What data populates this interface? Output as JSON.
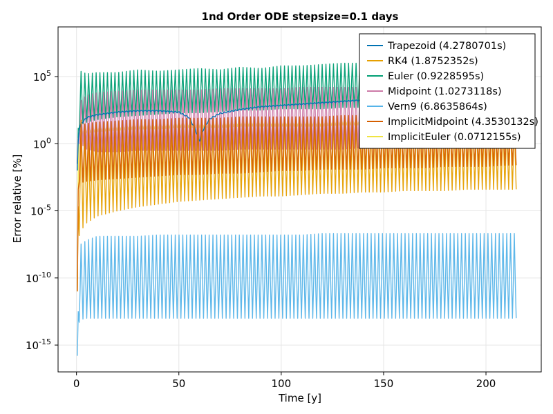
{
  "chart_data": {
    "type": "line",
    "title": "1nd Order ODE stepsize=0.1 days",
    "xlabel": "Time [y]",
    "ylabel": "Error relative [%]",
    "x_scale": "linear",
    "y_scale": "log10",
    "xlim": [
      -9,
      227
    ],
    "ylim_exponent": [
      -17,
      8.7
    ],
    "x_ticks": [
      {
        "value": 0,
        "label": "0"
      },
      {
        "value": 50,
        "label": "50"
      },
      {
        "value": 100,
        "label": "100"
      },
      {
        "value": 150,
        "label": "150"
      },
      {
        "value": 200,
        "label": "200"
      }
    ],
    "y_ticks": [
      {
        "exponent": 5,
        "base": "10",
        "exp_label": "5"
      },
      {
        "exponent": 0,
        "base": "10",
        "exp_label": "0"
      },
      {
        "exponent": -5,
        "base": "10",
        "exp_label": "-5"
      },
      {
        "exponent": -10,
        "base": "10",
        "exp_label": "-10"
      },
      {
        "exponent": -15,
        "base": "10",
        "exp_label": "-15"
      }
    ],
    "grid": true,
    "legend_position": "top-right",
    "oscillation_period_y": 1.84,
    "series": [
      {
        "name": "Euler (0.9228595s)",
        "color": "#009e73",
        "draw_order": 1,
        "x": [
          0.4,
          1,
          2,
          5,
          10,
          20,
          30,
          40,
          50,
          60,
          70,
          80,
          90,
          100,
          110,
          120,
          130,
          140,
          150,
          160,
          170,
          180,
          190,
          200,
          210,
          215
        ],
        "log_upper": [
          -1.5,
          3.4,
          5.4,
          5.2,
          5.3,
          5.3,
          5.5,
          5.4,
          5.5,
          5.6,
          5.5,
          5.7,
          5.6,
          5.8,
          5.8,
          5.9,
          6.0,
          6.0,
          6.0,
          6.0,
          6.1,
          6.0,
          6.1,
          6.1,
          6.2,
          6.2
        ],
        "log_lower": [
          -1.5,
          0.8,
          1.4,
          1.6,
          1.8,
          2.0,
          2.1,
          2.2,
          2.3,
          2.3,
          2.4,
          2.5,
          2.5,
          2.6,
          2.6,
          2.6,
          2.7,
          2.7,
          2.7,
          2.8,
          2.8,
          2.8,
          2.8,
          2.9,
          2.9,
          2.9
        ]
      },
      {
        "name": "Midpoint (1.0273118s)",
        "color": "#cc79a7",
        "draw_order": 2,
        "x": [
          0.4,
          1,
          2,
          5,
          10,
          20,
          30,
          40,
          50,
          60,
          70,
          80,
          90,
          100,
          110,
          120,
          130,
          140,
          150,
          160,
          170,
          180,
          190,
          200,
          210,
          215
        ],
        "log_upper": [
          -1.5,
          2.2,
          3.2,
          3.6,
          3.8,
          3.9,
          4.0,
          4.0,
          4.0,
          4.0,
          4.1,
          4.1,
          4.1,
          4.1,
          4.2,
          4.2,
          4.2,
          4.2,
          4.3,
          4.3,
          4.3,
          4.3,
          4.3,
          4.3,
          4.3,
          4.3
        ],
        "log_lower": [
          -1.5,
          0.0,
          0.0,
          -0.4,
          -0.6,
          -0.6,
          -0.5,
          -0.5,
          -0.5,
          -0.5,
          -0.5,
          -0.4,
          -0.4,
          -0.4,
          -0.4,
          -0.4,
          -0.4,
          -0.3,
          -0.3,
          -0.3,
          -0.3,
          -0.3,
          -0.3,
          -0.3,
          -0.3,
          -0.3
        ]
      },
      {
        "name": "Trapezoid (4.2780701s)",
        "color": "#0072b2",
        "draw_order": 3,
        "x": [
          0.4,
          1,
          2,
          5,
          10,
          20,
          30,
          40,
          50,
          55,
          58,
          60,
          62,
          65,
          70,
          80,
          90,
          100,
          110,
          120,
          130,
          140,
          150,
          160,
          170,
          180,
          190,
          200,
          210,
          215
        ],
        "log_upper": [
          -2,
          0.9,
          1.5,
          2.0,
          2.2,
          2.4,
          2.5,
          2.5,
          2.4,
          2.0,
          1.2,
          0.3,
          1.2,
          1.9,
          2.3,
          2.6,
          2.8,
          2.9,
          3.0,
          3.1,
          3.2,
          3.3,
          3.3,
          3.4,
          3.4,
          3.5,
          3.5,
          3.5,
          3.6,
          3.6
        ],
        "log_lower": [
          -2,
          0.8,
          1.4,
          1.9,
          2.1,
          2.3,
          2.4,
          2.4,
          2.3,
          1.9,
          1.0,
          0.1,
          1.0,
          1.8,
          2.2,
          2.5,
          2.7,
          2.8,
          2.9,
          3.0,
          3.1,
          3.2,
          3.2,
          3.3,
          3.3,
          3.4,
          3.4,
          3.4,
          3.5,
          3.5
        ]
      },
      {
        "name": "Vern9 (6.8635864s)",
        "color": "#56b4e9",
        "draw_order": 4,
        "x": [
          0.4,
          1,
          2,
          5,
          10,
          20,
          30,
          40,
          50,
          60,
          70,
          80,
          90,
          100,
          110,
          120,
          130,
          140,
          150,
          160,
          170,
          180,
          190,
          200,
          210,
          215
        ],
        "log_upper": [
          -15.8,
          -9.2,
          -7.5,
          -7.2,
          -6.9,
          -6.9,
          -6.9,
          -6.8,
          -6.8,
          -6.8,
          -6.8,
          -6.8,
          -6.8,
          -6.8,
          -6.8,
          -6.7,
          -6.7,
          -6.7,
          -6.7,
          -6.7,
          -6.7,
          -6.7,
          -6.7,
          -6.7,
          -6.7,
          -6.7
        ],
        "log_lower": [
          -15.8,
          -13.4,
          -13.1,
          -13.0,
          -13.0,
          -13.0,
          -13.0,
          -13.0,
          -13.0,
          -13.0,
          -13.0,
          -13.0,
          -13.0,
          -13.0,
          -13.0,
          -13.0,
          -13.0,
          -13.0,
          -13.0,
          -13.0,
          -13.0,
          -13.0,
          -13.0,
          -13.0,
          -13.0,
          -13.0
        ]
      },
      {
        "name": "RK4 (1.8752352s)",
        "color": "#e69f00",
        "draw_order": 5,
        "x": [
          0.4,
          1,
          2,
          5,
          10,
          20,
          30,
          40,
          50,
          60,
          70,
          80,
          90,
          100,
          110,
          120,
          130,
          140,
          150,
          160,
          170,
          180,
          190,
          200,
          210,
          215
        ],
        "log_upper": [
          -11,
          2.4,
          1.8,
          1.2,
          1.1,
          1.2,
          1.3,
          1.4,
          1.5,
          1.6,
          1.6,
          1.7,
          1.7,
          1.8,
          1.8,
          1.8,
          1.9,
          1.9,
          1.9,
          2.0,
          2.0,
          2.0,
          2.0,
          2.1,
          2.1,
          2.1
        ],
        "log_lower": [
          -11,
          -7.0,
          -6.5,
          -5.9,
          -5.4,
          -5.0,
          -4.7,
          -4.5,
          -4.3,
          -4.2,
          -4.1,
          -4.0,
          -3.9,
          -3.9,
          -3.8,
          -3.7,
          -3.7,
          -3.6,
          -3.6,
          -3.5,
          -3.5,
          -3.5,
          -3.4,
          -3.4,
          -3.4,
          -3.4
        ]
      },
      {
        "name": "ImplicitMidpoint (4.3530132s)",
        "color": "#d55e00",
        "draw_order": 6,
        "x": [
          0.4,
          1,
          2,
          5,
          10,
          20,
          30,
          40,
          50,
          60,
          70,
          80,
          90,
          100,
          110,
          120,
          130,
          140,
          150,
          160,
          170,
          180,
          190,
          200,
          210,
          215
        ],
        "log_upper": [
          -11,
          1.0,
          1.4,
          1.5,
          1.6,
          1.7,
          1.8,
          1.8,
          1.9,
          1.9,
          1.9,
          2.0,
          2.0,
          2.0,
          2.0,
          2.0,
          2.1,
          2.1,
          2.1,
          2.1,
          2.1,
          2.1,
          2.1,
          2.2,
          2.2,
          2.2
        ],
        "log_lower": [
          -11,
          -2.8,
          -2.9,
          -2.8,
          -2.7,
          -2.6,
          -2.5,
          -2.4,
          -2.3,
          -2.3,
          -2.2,
          -2.2,
          -2.1,
          -2.0,
          -2.0,
          -1.9,
          -1.9,
          -1.9,
          -1.8,
          -1.8,
          -1.8,
          -1.7,
          -1.7,
          -1.7,
          -1.6,
          -1.6
        ]
      },
      {
        "name": "ImplicitEuler (0.0712155s)",
        "color": "#f0e442",
        "draw_order": 0,
        "x": [
          0.4,
          1,
          2,
          5,
          10,
          20,
          30,
          40,
          50,
          60,
          70,
          80,
          90,
          100,
          110,
          120,
          130,
          140,
          150,
          160,
          170,
          180,
          190,
          200,
          210,
          215
        ],
        "log_upper": [
          -11,
          1.2,
          1.3,
          1.4,
          1.5,
          1.6,
          1.7,
          1.7,
          1.8,
          1.8,
          1.8,
          1.9,
          1.9,
          1.9,
          1.9,
          1.9,
          2.0,
          2.0,
          2.0,
          2.0,
          2.0,
          2.0,
          2.0,
          2.1,
          2.1,
          2.1
        ],
        "log_lower": [
          -11,
          0.6,
          0.7,
          0.8,
          0.9,
          1.0,
          1.1,
          1.1,
          1.2,
          1.2,
          1.2,
          1.3,
          1.3,
          1.3,
          1.3,
          1.3,
          1.4,
          1.4,
          1.4,
          1.4,
          1.4,
          1.4,
          1.4,
          1.5,
          1.5,
          1.5
        ]
      }
    ],
    "legend_order": [
      "Trapezoid (4.2780701s)",
      "RK4 (1.8752352s)",
      "Euler (0.9228595s)",
      "Midpoint (1.0273118s)",
      "Vern9 (6.8635864s)",
      "ImplicitMidpoint (4.3530132s)",
      "ImplicitEuler (0.0712155s)"
    ]
  }
}
